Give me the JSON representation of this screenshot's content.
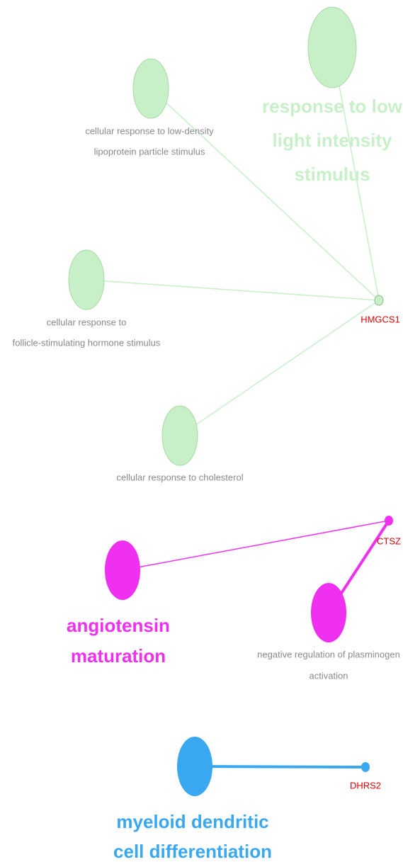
{
  "nodes": [
    {
      "label": [
        "response to low",
        "light intensity",
        "stimulus"
      ]
    },
    {
      "label": [
        "cellular response to low-density",
        "lipoprotein particle stimulus"
      ]
    },
    {
      "label": [
        "cellular response to",
        "follicle-stimulating hormone stimulus"
      ]
    },
    {
      "label": [
        "cellular response to cholesterol"
      ]
    },
    {
      "label": [
        "HMGCS1"
      ]
    },
    {
      "label": [
        "CTSZ"
      ]
    },
    {
      "label": [
        "angiotensin",
        "maturation"
      ]
    },
    {
      "label": [
        "negative regulation of plasminogen",
        "activation"
      ]
    },
    {
      "label": [
        "myeloid dendritic",
        "cell differentiation"
      ]
    },
    {
      "label": [
        "DHRS2"
      ]
    }
  ]
}
